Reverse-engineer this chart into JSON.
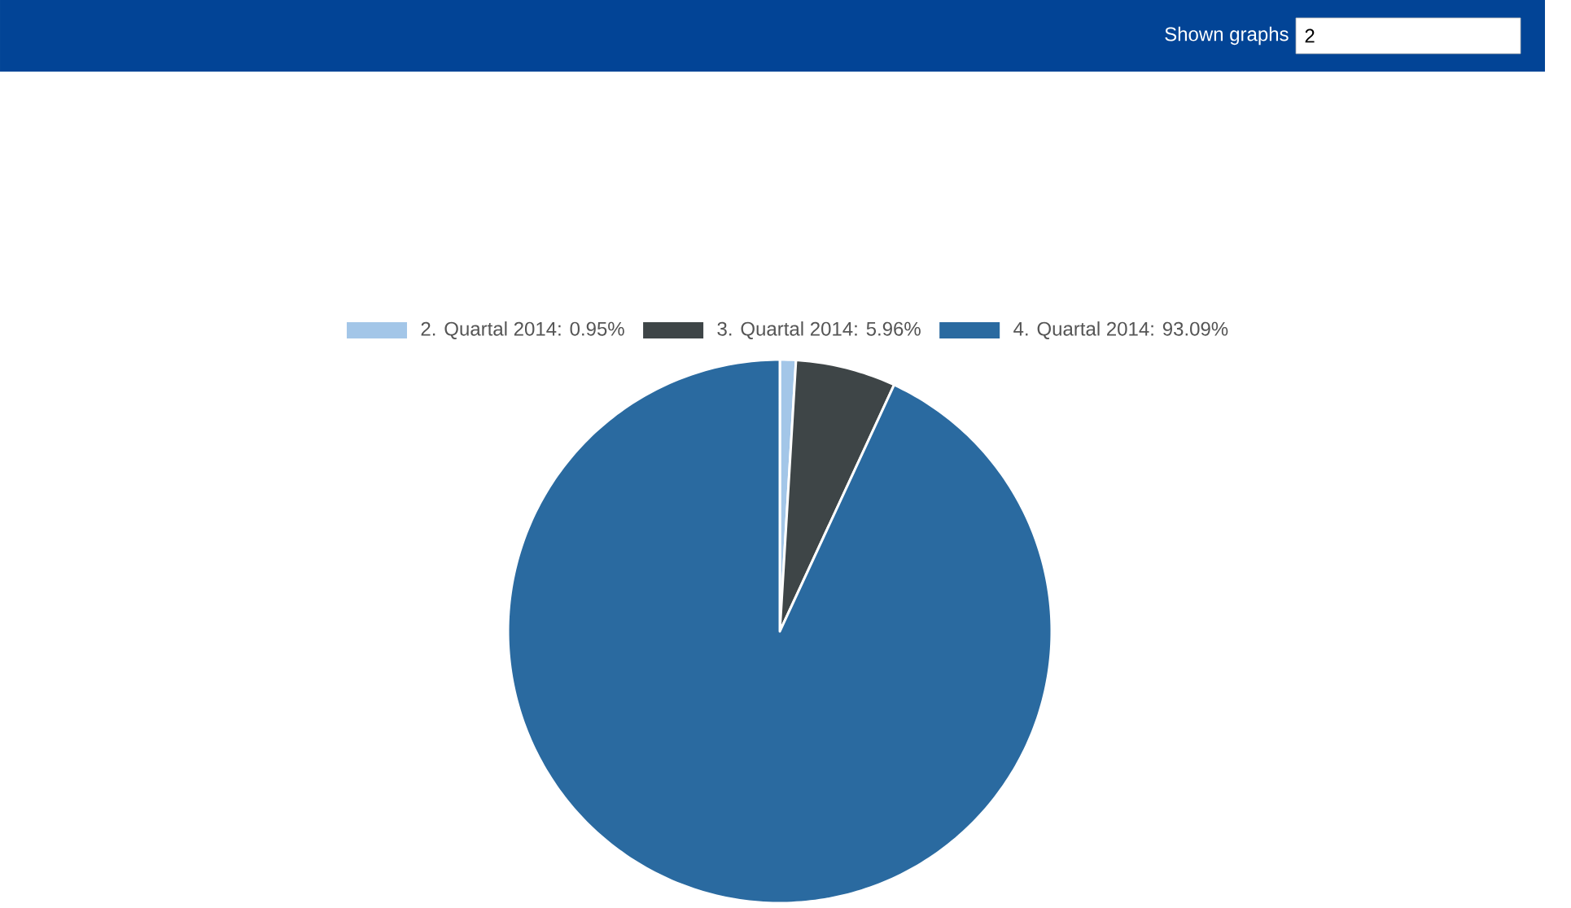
{
  "chart_data": {
    "type": "pie",
    "categories": [
      "2. Quartal 2014: 0.95%",
      "3. Quartal 2014: 5.96%",
      "4. Quartal 2014: 93.09%"
    ],
    "values": [
      0.95,
      5.96,
      93.09
    ],
    "colors": [
      "#a3c6e8",
      "#3e4547",
      "#2a6aa0"
    ],
    "legend": "top",
    "annotations": [
      "Shown graphs",
      "2"
    ]
  }
}
